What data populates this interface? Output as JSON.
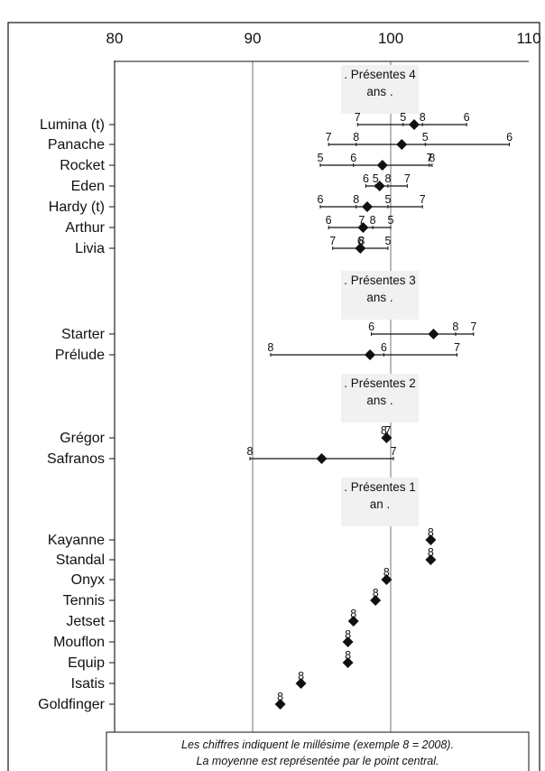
{
  "chart_data": {
    "type": "scatter",
    "xlim": [
      80,
      110
    ],
    "x_ticks": [
      80,
      90,
      100,
      110
    ],
    "grid": true,
    "groups": [
      {
        "label_lines": [
          ". Présentes 4",
          "ans ."
        ],
        "varieties": [
          {
            "name": "Lumina (t)",
            "mean": 101.7,
            "points": [
              {
                "year": "7",
                "x": 97.6
              },
              {
                "year": "5",
                "x": 100.9
              },
              {
                "year": "8",
                "x": 102.3
              },
              {
                "year": "6",
                "x": 105.5
              }
            ]
          },
          {
            "name": "Panache",
            "mean": 100.8,
            "points": [
              {
                "year": "7",
                "x": 95.5
              },
              {
                "year": "8",
                "x": 97.5
              },
              {
                "year": "5",
                "x": 102.5
              },
              {
                "year": "6",
                "x": 108.6
              }
            ]
          },
          {
            "name": "Rocket",
            "mean": 99.4,
            "points": [
              {
                "year": "5",
                "x": 94.9
              },
              {
                "year": "6",
                "x": 97.3
              },
              {
                "year": "7",
                "x": 102.8
              },
              {
                "year": "8",
                "x": 103.0
              }
            ]
          },
          {
            "name": "Eden",
            "mean": 99.2,
            "points": [
              {
                "year": "6",
                "x": 98.2
              },
              {
                "year": "5",
                "x": 98.9
              },
              {
                "year": "8",
                "x": 99.8
              },
              {
                "year": "7",
                "x": 101.2
              }
            ]
          },
          {
            "name": "Hardy (t)",
            "mean": 98.3,
            "points": [
              {
                "year": "6",
                "x": 94.9
              },
              {
                "year": "8",
                "x": 97.5
              },
              {
                "year": "5",
                "x": 99.8
              },
              {
                "year": "7",
                "x": 102.3
              }
            ]
          },
          {
            "name": "Arthur",
            "mean": 98.0,
            "points": [
              {
                "year": "6",
                "x": 95.5
              },
              {
                "year": "7",
                "x": 97.9
              },
              {
                "year": "8",
                "x": 98.7
              },
              {
                "year": "5",
                "x": 100.0
              }
            ]
          },
          {
            "name": "Livia",
            "mean": 97.8,
            "points": [
              {
                "year": "7",
                "x": 95.8
              },
              {
                "year": "6",
                "x": 97.8
              },
              {
                "year": "8",
                "x": 97.9
              },
              {
                "year": "5",
                "x": 99.8
              }
            ]
          }
        ]
      },
      {
        "label_lines": [
          ". Présentes 3",
          "ans ."
        ],
        "varieties": [
          {
            "name": "Starter",
            "mean": 103.1,
            "points": [
              {
                "year": "6",
                "x": 98.6
              },
              {
                "year": "8",
                "x": 104.7
              },
              {
                "year": "7",
                "x": 106.0
              }
            ]
          },
          {
            "name": "Prélude",
            "mean": 98.5,
            "points": [
              {
                "year": "8",
                "x": 91.3
              },
              {
                "year": "6",
                "x": 99.5
              },
              {
                "year": "7",
                "x": 104.8
              }
            ]
          }
        ]
      },
      {
        "label_lines": [
          ". Présentes 2",
          "ans ."
        ],
        "varieties": [
          {
            "name": "Grégor",
            "mean": 99.7,
            "points": [
              {
                "year": "8",
                "x": 99.5
              },
              {
                "year": "7",
                "x": 99.8
              }
            ]
          },
          {
            "name": "Safranos",
            "mean": 95.0,
            "points": [
              {
                "year": "8",
                "x": 89.8
              },
              {
                "year": "7",
                "x": 100.2
              }
            ]
          }
        ]
      },
      {
        "label_lines": [
          ". Présentes 1",
          "an ."
        ],
        "varieties": [
          {
            "name": "Kayanne",
            "mean": 102.9,
            "points": [
              {
                "year": "8",
                "x": 102.9
              }
            ]
          },
          {
            "name": "Standal",
            "mean": 102.9,
            "points": [
              {
                "year": "8",
                "x": 102.9
              }
            ]
          },
          {
            "name": "Onyx",
            "mean": 99.7,
            "points": [
              {
                "year": "8",
                "x": 99.7
              }
            ]
          },
          {
            "name": "Tennis",
            "mean": 98.9,
            "points": [
              {
                "year": "8",
                "x": 98.9
              }
            ]
          },
          {
            "name": "Jetset",
            "mean": 97.3,
            "points": [
              {
                "year": "8",
                "x": 97.3
              }
            ]
          },
          {
            "name": "Mouflon",
            "mean": 96.9,
            "points": [
              {
                "year": "8",
                "x": 96.9
              }
            ]
          },
          {
            "name": "Equip",
            "mean": 96.9,
            "points": [
              {
                "year": "8",
                "x": 96.9
              }
            ]
          },
          {
            "name": "Isatis",
            "mean": 93.5,
            "points": [
              {
                "year": "8",
                "x": 93.5
              }
            ]
          },
          {
            "name": "Goldfinger",
            "mean": 92.0,
            "points": [
              {
                "year": "8",
                "x": 92.0
              }
            ]
          }
        ]
      }
    ],
    "annotations": [
      "Les chiffres indiquent le millésime (exemple 8 = 2008).",
      "La moyenne est représentée par le point central."
    ],
    "colors": {
      "marker": "#111111",
      "grid": "#666666",
      "group_label_bg": "#f1f1f1"
    }
  }
}
